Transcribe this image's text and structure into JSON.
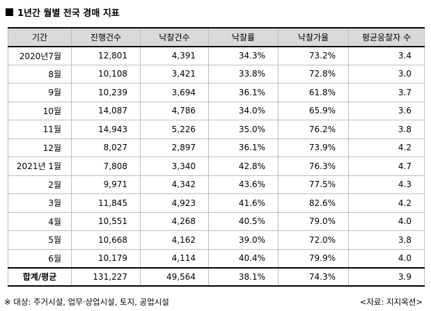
{
  "title": "1년간 월별 전국 경매 지표",
  "columns": [
    "기간",
    "진행건수",
    "낙찰건수",
    "낙찰률",
    "낙찰가율",
    "평균응찰자 수"
  ],
  "rows": [
    {
      "period": "2020년7월",
      "progress": "12,801",
      "sold": "4,391",
      "sale_rate": "34.3%",
      "price_rate": "73.2%",
      "bidders": "3.4"
    },
    {
      "period": "8월",
      "progress": "10,108",
      "sold": "3,421",
      "sale_rate": "33.8%",
      "price_rate": "72.8%",
      "bidders": "3.0"
    },
    {
      "period": "9월",
      "progress": "10,239",
      "sold": "3,694",
      "sale_rate": "36.1%",
      "price_rate": "61.8%",
      "bidders": "3.7"
    },
    {
      "period": "10월",
      "progress": "14,087",
      "sold": "4,786",
      "sale_rate": "34.0%",
      "price_rate": "65.9%",
      "bidders": "3.6"
    },
    {
      "period": "11월",
      "progress": "14,943",
      "sold": "5,226",
      "sale_rate": "35.0%",
      "price_rate": "76.2%",
      "bidders": "3.8"
    },
    {
      "period": "12월",
      "progress": "8,027",
      "sold": "2,897",
      "sale_rate": "36.1%",
      "price_rate": "73.9%",
      "bidders": "4.2"
    },
    {
      "period": "2021년 1월",
      "progress": "7,808",
      "sold": "3,340",
      "sale_rate": "42.8%",
      "price_rate": "76.3%",
      "bidders": "4.7"
    },
    {
      "period": "2월",
      "progress": "9,971",
      "sold": "4,342",
      "sale_rate": "43.6%",
      "price_rate": "77.5%",
      "bidders": "4.3"
    },
    {
      "period": "3월",
      "progress": "11,845",
      "sold": "4,923",
      "sale_rate": "41.6%",
      "price_rate": "82.6%",
      "bidders": "4.2"
    },
    {
      "period": "4월",
      "progress": "10,551",
      "sold": "4,268",
      "sale_rate": "40.5%",
      "price_rate": "79.0%",
      "bidders": "4.0"
    },
    {
      "period": "5월",
      "progress": "10,668",
      "sold": "4,162",
      "sale_rate": "39.0%",
      "price_rate": "72.0%",
      "bidders": "3.8"
    },
    {
      "period": "6월",
      "progress": "10,179",
      "sold": "4,114",
      "sale_rate": "40.4%",
      "price_rate": "79.9%",
      "bidders": "4.0"
    }
  ],
  "total": {
    "label": "합계/평균",
    "progress": "131,227",
    "sold": "49,564",
    "sale_rate": "38.1%",
    "price_rate": "74.3%",
    "bidders": "3.9"
  },
  "footnote": "※ 대상: 주거시설, 업무·상업시설, 토지, 공업시설",
  "source": "<자료: 지지옥션>"
}
